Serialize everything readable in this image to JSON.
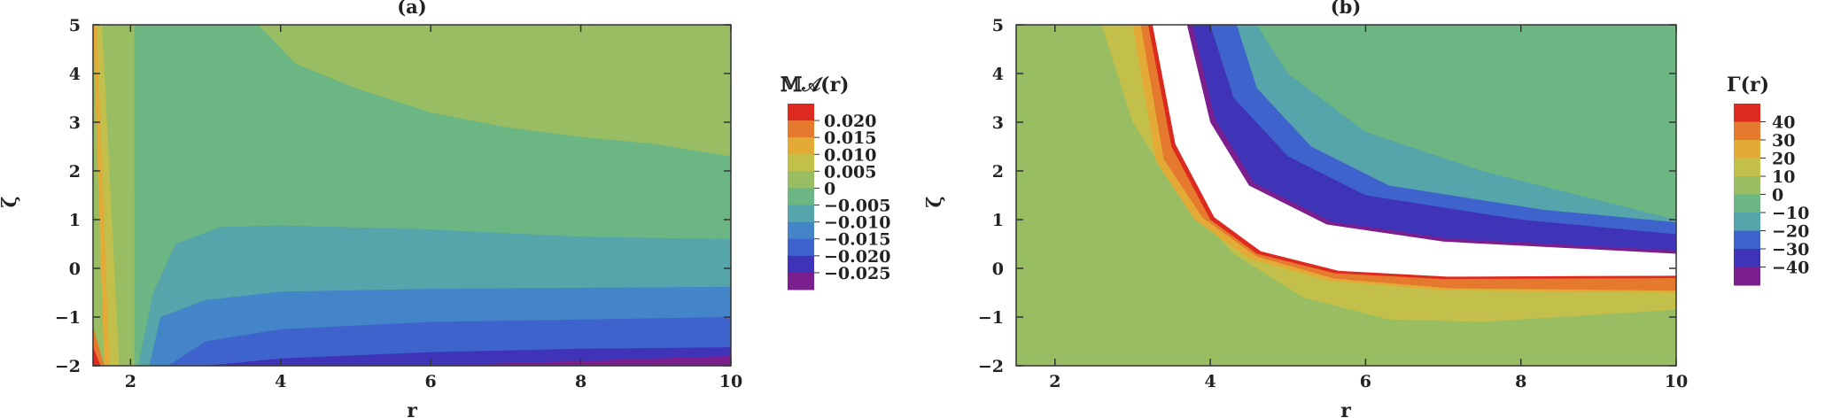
{
  "palette": [
    "#7b1f8f",
    "#3f33b8",
    "#3e63cc",
    "#4484c8",
    "#56a5aa",
    "#6cb684",
    "#98bd62",
    "#c2c04a",
    "#e3ab36",
    "#e57a2f",
    "#dd2a20"
  ],
  "chart_data": [
    {
      "type": "contour",
      "title": "(a)",
      "xlabel": "r",
      "ylabel": "ζ",
      "xlim": [
        1.5,
        10
      ],
      "ylim": [
        -2,
        5
      ],
      "xticks": [
        "2",
        "4",
        "6",
        "8",
        "10"
      ],
      "yticks": [
        "−2",
        "−1",
        "0",
        "1",
        "2",
        "3",
        "4",
        "5"
      ],
      "legend_title": "𝕄𝒜(r)",
      "legend_labels": [
        "0.020",
        "0.015",
        "0.010",
        "0.005",
        "0",
        "−0.005",
        "−0.010",
        "−0.015",
        "−0.020",
        "−0.025"
      ],
      "levels": [
        -0.025,
        -0.02,
        -0.015,
        -0.01,
        -0.005,
        0,
        0.005,
        0.01,
        0.015,
        0.02
      ],
      "boundaries": [
        {
          "level": -0.02,
          "points": [
            [
              3.0,
              -2.0
            ],
            [
              4.0,
              -1.85
            ],
            [
              6.0,
              -1.72
            ],
            [
              8.0,
              -1.65
            ],
            [
              10.0,
              -1.62
            ]
          ]
        },
        {
          "level": -0.015,
          "points": [
            [
              2.5,
              -2.0
            ],
            [
              3.0,
              -1.5
            ],
            [
              4.0,
              -1.25
            ],
            [
              6.0,
              -1.1
            ],
            [
              8.0,
              -1.05
            ],
            [
              10.0,
              -1.0
            ]
          ]
        },
        {
          "level": -0.01,
          "points": [
            [
              2.25,
              -2.0
            ],
            [
              2.4,
              -1.0
            ],
            [
              3.0,
              -0.65
            ],
            [
              4.0,
              -0.48
            ],
            [
              6.0,
              -0.42
            ],
            [
              8.0,
              -0.4
            ],
            [
              10.0,
              -0.38
            ]
          ]
        },
        {
          "level": -0.005,
          "points": [
            [
              2.1,
              -2.0
            ],
            [
              2.3,
              -0.5
            ],
            [
              2.6,
              0.5
            ],
            [
              3.2,
              0.85
            ],
            [
              4.0,
              0.88
            ],
            [
              6.0,
              0.8
            ],
            [
              8.0,
              0.65
            ],
            [
              10.0,
              0.6
            ]
          ]
        },
        {
          "level": 0.0,
          "points": [
            [
              3.7,
              5.0
            ],
            [
              4.2,
              4.2
            ],
            [
              5.0,
              3.7
            ],
            [
              6.0,
              3.2
            ],
            [
              7.0,
              2.9
            ],
            [
              8.0,
              2.7
            ],
            [
              9.0,
              2.55
            ],
            [
              10.0,
              2.3
            ]
          ]
        }
      ]
    },
    {
      "type": "contour",
      "title": "(b)",
      "xlabel": "r",
      "ylabel": "ζ",
      "xlim": [
        1.5,
        10
      ],
      "ylim": [
        -2,
        5
      ],
      "xticks": [
        "2",
        "4",
        "6",
        "8",
        "10"
      ],
      "yticks": [
        "−2",
        "−1",
        "0",
        "1",
        "2",
        "3",
        "4",
        "5"
      ],
      "legend_title": "Γ(r)",
      "legend_labels": [
        "40",
        "30",
        "20",
        "10",
        "0",
        "−10",
        "−20",
        "−30",
        "−40"
      ],
      "levels": [
        -40,
        -30,
        -20,
        -10,
        0,
        10,
        20,
        30,
        40
      ],
      "boundaries": [
        {
          "level": 10,
          "points": [
            [
              2.6,
              5.0
            ],
            [
              3.0,
              3.0
            ],
            [
              3.6,
              1.5
            ],
            [
              4.3,
              0.3
            ],
            [
              5.2,
              -0.6
            ],
            [
              6.3,
              -1.05
            ],
            [
              7.5,
              -1.1
            ],
            [
              10.0,
              -0.85
            ]
          ]
        },
        {
          "level": 20,
          "points": [
            [
              3.0,
              5.0
            ],
            [
              3.3,
              2.2
            ],
            [
              3.8,
              1.0
            ],
            [
              4.5,
              0.2
            ],
            [
              5.5,
              -0.25
            ],
            [
              7.0,
              -0.45
            ],
            [
              10.0,
              -0.5
            ]
          ]
        },
        {
          "level": 40,
          "points": [
            [
              3.2,
              5.0
            ],
            [
              3.5,
              2.5
            ],
            [
              4.0,
              1.0
            ],
            [
              4.6,
              0.3
            ],
            [
              5.6,
              -0.1
            ],
            [
              7.0,
              -0.22
            ],
            [
              10.0,
              -0.2
            ]
          ]
        },
        {
          "level": -40,
          "points": [
            [
              3.7,
              5.0
            ],
            [
              4.0,
              3.0
            ],
            [
              4.5,
              1.7
            ],
            [
              5.5,
              0.9
            ],
            [
              7.0,
              0.55
            ],
            [
              10.0,
              0.3
            ]
          ]
        },
        {
          "level": -20,
          "points": [
            [
              4.0,
              5.0
            ],
            [
              4.3,
              3.5
            ],
            [
              5.0,
              2.3
            ],
            [
              6.0,
              1.5
            ],
            [
              8.0,
              1.0
            ],
            [
              10.0,
              0.7
            ]
          ]
        },
        {
          "level": -10,
          "points": [
            [
              4.6,
              5.0
            ],
            [
              5.0,
              4.0
            ],
            [
              6.0,
              2.8
            ],
            [
              7.5,
              2.0
            ],
            [
              10.0,
              1.0
            ]
          ]
        }
      ]
    }
  ]
}
